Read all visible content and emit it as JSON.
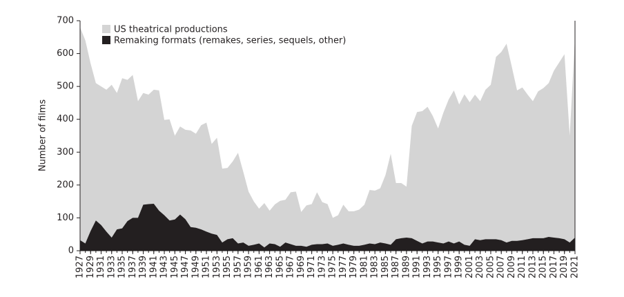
{
  "chart_data": {
    "type": "area",
    "ylabel": "Number of films",
    "x": [
      1927,
      1928,
      1929,
      1930,
      1931,
      1932,
      1933,
      1934,
      1935,
      1936,
      1937,
      1938,
      1939,
      1940,
      1941,
      1942,
      1943,
      1944,
      1945,
      1946,
      1947,
      1948,
      1949,
      1950,
      1951,
      1952,
      1953,
      1954,
      1955,
      1956,
      1957,
      1958,
      1959,
      1960,
      1961,
      1962,
      1963,
      1964,
      1965,
      1966,
      1967,
      1968,
      1969,
      1970,
      1971,
      1972,
      1973,
      1974,
      1975,
      1976,
      1977,
      1978,
      1979,
      1980,
      1981,
      1982,
      1983,
      1984,
      1985,
      1986,
      1987,
      1988,
      1989,
      1990,
      1991,
      1992,
      1993,
      1994,
      1995,
      1996,
      1997,
      1998,
      1999,
      2000,
      2001,
      2002,
      2003,
      2004,
      2005,
      2006,
      2007,
      2008,
      2009,
      2010,
      2011,
      2012,
      2013,
      2014,
      2015,
      2016,
      2017,
      2018,
      2019,
      2020,
      2021
    ],
    "series": [
      {
        "name": "US theatrical productions",
        "color": "#d4d4d4",
        "values": [
          680,
          640,
          570,
          510,
          500,
          490,
          505,
          480,
          525,
          520,
          535,
          455,
          480,
          475,
          490,
          488,
          398,
          400,
          350,
          378,
          368,
          366,
          356,
          382,
          390,
          325,
          344,
          250,
          252,
          272,
          298,
          240,
          180,
          150,
          128,
          145,
          122,
          141,
          152,
          155,
          178,
          180,
          118,
          138,
          142,
          178,
          148,
          142,
          100,
          108,
          140,
          120,
          120,
          125,
          140,
          185,
          183,
          190,
          230,
          295,
          206,
          206,
          195,
          380,
          422,
          425,
          438,
          410,
          372,
          420,
          460,
          488,
          445,
          476,
          452,
          475,
          455,
          490,
          505,
          590,
          605,
          630,
          560,
          488,
          497,
          475,
          455,
          485,
          495,
          510,
          548,
          573,
          598,
          350,
          650
        ]
      },
      {
        "name": "Remaking formats (remakes, series, sequels, other)",
        "color": "#231f20",
        "values": [
          32,
          22,
          60,
          92,
          78,
          58,
          40,
          65,
          68,
          90,
          100,
          100,
          140,
          142,
          143,
          122,
          108,
          92,
          95,
          110,
          96,
          72,
          70,
          65,
          58,
          52,
          48,
          25,
          35,
          38,
          22,
          25,
          15,
          18,
          22,
          10,
          22,
          20,
          12,
          25,
          20,
          15,
          15,
          12,
          18,
          20,
          20,
          22,
          15,
          18,
          22,
          18,
          15,
          15,
          18,
          22,
          20,
          25,
          22,
          18,
          35,
          38,
          40,
          38,
          30,
          22,
          28,
          28,
          25,
          22,
          28,
          22,
          28,
          18,
          15,
          35,
          32,
          35,
          35,
          35,
          32,
          25,
          30,
          30,
          32,
          35,
          38,
          38,
          38,
          42,
          40,
          38,
          35,
          25,
          40
        ]
      }
    ],
    "xlim": [
      1927,
      2021
    ],
    "xticks": [
      1927,
      1929,
      1931,
      1933,
      1935,
      1937,
      1939,
      1941,
      1943,
      1945,
      1947,
      1949,
      1951,
      1953,
      1955,
      1957,
      1959,
      1961,
      1963,
      1965,
      1967,
      1969,
      1971,
      1973,
      1975,
      1977,
      1979,
      1981,
      1983,
      1985,
      1987,
      1989,
      1991,
      1993,
      1995,
      1997,
      1999,
      2001,
      2003,
      2005,
      2007,
      2009,
      2011,
      2013,
      2015,
      2017,
      2019,
      2021
    ],
    "ylim": [
      0,
      700
    ],
    "yticks": [
      0,
      100,
      200,
      300,
      400,
      500,
      600,
      700
    ],
    "legend": "upper left"
  }
}
